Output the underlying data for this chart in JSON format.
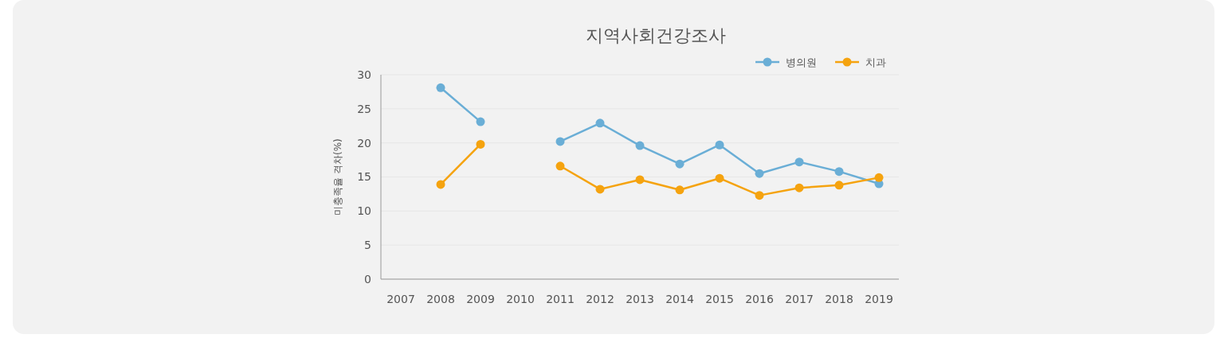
{
  "chart_data": {
    "type": "line",
    "title": "지역사회건강조사",
    "ylabel": "미충족율 격차(%)",
    "categories": [
      "2007",
      "2008",
      "2009",
      "2010",
      "2011",
      "2012",
      "2013",
      "2014",
      "2015",
      "2016",
      "2017",
      "2018",
      "2019"
    ],
    "series": [
      {
        "name": "병의원",
        "color": "#6aaed6",
        "values": [
          null,
          28.1,
          23.1,
          null,
          20.2,
          22.9,
          19.6,
          16.9,
          19.7,
          15.5,
          17.2,
          15.8,
          14.0
        ]
      },
      {
        "name": "치과",
        "color": "#f5a30f",
        "values": [
          null,
          13.9,
          19.8,
          null,
          16.6,
          13.2,
          14.6,
          13.1,
          14.8,
          12.3,
          13.4,
          13.8,
          14.9
        ]
      }
    ],
    "ylim": [
      0,
      30
    ],
    "yticks": [
      0,
      5,
      10,
      15,
      20,
      25,
      30
    ],
    "grid": "y",
    "legend": "top right",
    "marker": "circle",
    "line_style": "solid"
  }
}
